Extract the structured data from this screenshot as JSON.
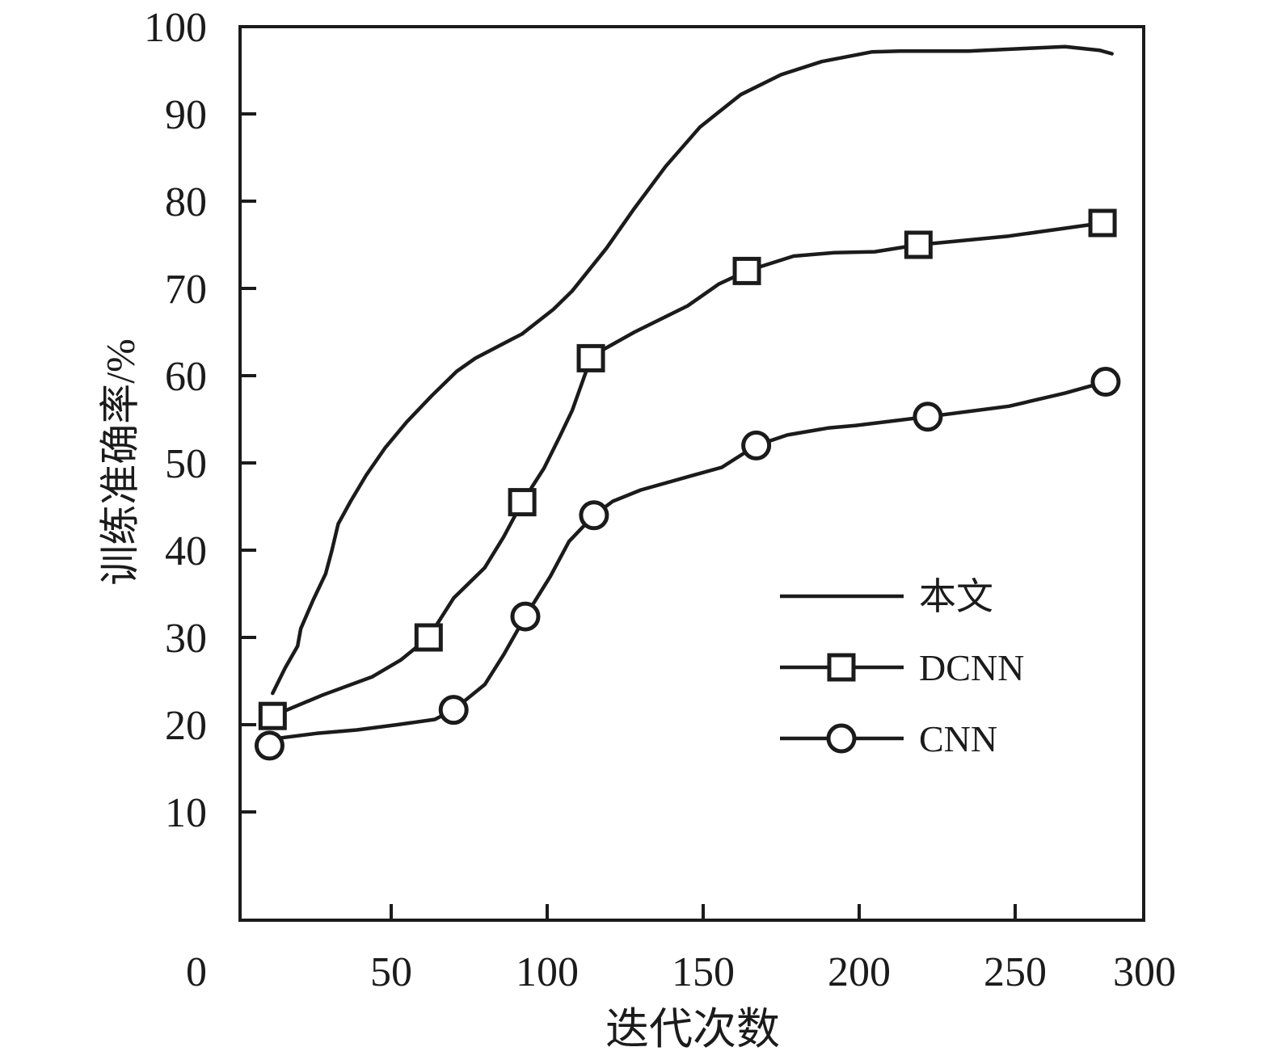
{
  "figure": {
    "background": "#ffffff",
    "ink": "#1b1b1b"
  },
  "chart_data": {
    "type": "line",
    "xlabel": "迭代次数",
    "ylabel": "训练准确率/%",
    "xlim": [
      0,
      300
    ],
    "ylim": [
      0,
      100
    ],
    "x_ticks": [
      0,
      50,
      100,
      150,
      200,
      250,
      300
    ],
    "y_ticks": [
      10,
      20,
      30,
      40,
      50,
      60,
      70,
      80,
      90,
      100
    ],
    "grid": false,
    "legend_position": "inside-lower-right",
    "series": [
      {
        "id": "proposed",
        "name": "本文",
        "marker": "none",
        "line": [
          [
            12,
            23.6
          ],
          [
            16,
            26.5
          ],
          [
            20,
            29
          ],
          [
            21,
            31
          ],
          [
            25,
            34.3
          ],
          [
            29,
            37.3
          ],
          [
            31,
            40
          ],
          [
            33,
            43
          ],
          [
            37,
            45.6
          ],
          [
            42,
            48.6
          ],
          [
            48,
            51.7
          ],
          [
            55,
            54.7
          ],
          [
            63,
            57.7
          ],
          [
            71,
            60.5
          ],
          [
            77,
            62
          ],
          [
            92,
            64.8
          ],
          [
            102,
            67.6
          ],
          [
            108,
            69.7
          ],
          [
            119,
            74.6
          ],
          [
            128,
            79.2
          ],
          [
            138,
            84
          ],
          [
            149,
            88.5
          ],
          [
            162,
            92.2
          ],
          [
            175,
            94.5
          ],
          [
            188,
            96
          ],
          [
            204,
            97.1
          ],
          [
            213,
            97.2
          ],
          [
            235,
            97.2
          ],
          [
            253,
            97.5
          ],
          [
            266,
            97.7
          ],
          [
            277,
            97.3
          ],
          [
            281,
            96.9
          ]
        ],
        "markers": []
      },
      {
        "id": "dcnn",
        "name": "DCNN",
        "marker": "square",
        "line": [
          [
            12,
            21
          ],
          [
            28,
            23.4
          ],
          [
            44,
            25.5
          ],
          [
            53,
            27.4
          ],
          [
            62,
            30
          ],
          [
            70,
            34.5
          ],
          [
            80,
            38
          ],
          [
            86,
            41.5
          ],
          [
            92,
            45.5
          ],
          [
            99,
            49.4
          ],
          [
            104,
            53
          ],
          [
            108,
            56
          ],
          [
            114,
            62
          ],
          [
            118,
            63
          ],
          [
            128,
            65
          ],
          [
            145,
            68
          ],
          [
            155,
            70.5
          ],
          [
            164,
            72
          ],
          [
            179,
            73.7
          ],
          [
            192,
            74.1
          ],
          [
            205,
            74.2
          ],
          [
            219,
            75
          ],
          [
            248,
            76
          ],
          [
            266,
            76.9
          ],
          [
            278,
            77.5
          ]
        ],
        "markers": [
          [
            12,
            21
          ],
          [
            62,
            30
          ],
          [
            92,
            45.5
          ],
          [
            114,
            62
          ],
          [
            164,
            72
          ],
          [
            219,
            75
          ],
          [
            278,
            77.5
          ]
        ]
      },
      {
        "id": "cnn",
        "name": "CNN",
        "marker": "circle",
        "line": [
          [
            11,
            17.6
          ],
          [
            15,
            18.5
          ],
          [
            26,
            19
          ],
          [
            39,
            19.4
          ],
          [
            52,
            20
          ],
          [
            64,
            20.6
          ],
          [
            70,
            21.7
          ],
          [
            80,
            24.6
          ],
          [
            86,
            28
          ],
          [
            93,
            32.4
          ],
          [
            101,
            37
          ],
          [
            107,
            41
          ],
          [
            115,
            44
          ],
          [
            121,
            45.6
          ],
          [
            130,
            46.9
          ],
          [
            147,
            48.6
          ],
          [
            156,
            49.5
          ],
          [
            167,
            52
          ],
          [
            177,
            53.2
          ],
          [
            190,
            54
          ],
          [
            199,
            54.3
          ],
          [
            222,
            55.3
          ],
          [
            248,
            56.5
          ],
          [
            266,
            58
          ],
          [
            279,
            59.3
          ]
        ],
        "markers": [
          [
            11,
            17.6
          ],
          [
            70,
            21.7
          ],
          [
            93,
            32.4
          ],
          [
            115,
            44
          ],
          [
            167,
            52
          ],
          [
            222,
            55.3
          ],
          [
            279,
            59.3
          ]
        ]
      }
    ]
  }
}
